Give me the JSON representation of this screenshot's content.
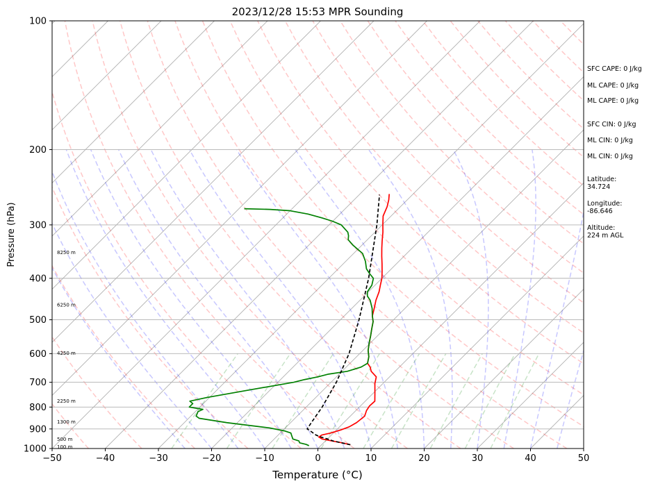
{
  "chart_data": {
    "type": "skew-t",
    "title": "2023/12/28 15:53 MPR Sounding",
    "xlabel": "Temperature (°C)",
    "ylabel": "Pressure (hPa)",
    "xlim": [
      -50,
      50
    ],
    "ylim": [
      1000,
      100
    ],
    "y_scale": "log",
    "x_ticks": [
      -50,
      -40,
      -30,
      -20,
      -10,
      0,
      10,
      20,
      30,
      40,
      50
    ],
    "y_ticks": [
      100,
      200,
      300,
      400,
      500,
      600,
      700,
      800,
      900,
      1000
    ],
    "grid": true,
    "skew_deg": 45,
    "series": [
      {
        "role": "temperature",
        "color": "#ff0000",
        "points": [
          [
            5.4,
            980
          ],
          [
            3.5,
            970
          ],
          [
            1.2,
            960
          ],
          [
            -1.0,
            950
          ],
          [
            -2.0,
            940
          ],
          [
            -1.8,
            930
          ],
          [
            -0.5,
            920
          ],
          [
            0.8,
            905
          ],
          [
            1.8,
            890
          ],
          [
            2.4,
            870
          ],
          [
            2.7,
            840
          ],
          [
            2.0,
            815
          ],
          [
            1.7,
            795
          ],
          [
            1.8,
            775
          ],
          [
            0.2,
            740
          ],
          [
            -1.5,
            705
          ],
          [
            -2.5,
            680
          ],
          [
            -4.5,
            660
          ],
          [
            -5.5,
            645
          ],
          [
            -6.7,
            632
          ],
          [
            -7.7,
            610
          ],
          [
            -9.0,
            590
          ],
          [
            -10.3,
            565
          ],
          [
            -11.3,
            545
          ],
          [
            -12.4,
            525
          ],
          [
            -13.5,
            505
          ],
          [
            -14.7,
            490
          ],
          [
            -15.8,
            470
          ],
          [
            -17.0,
            450
          ],
          [
            -18.0,
            430
          ],
          [
            -19.0,
            415
          ],
          [
            -20.0,
            400
          ],
          [
            -21.3,
            385
          ],
          [
            -22.7,
            370
          ],
          [
            -24.2,
            355
          ],
          [
            -25.7,
            340
          ],
          [
            -27.0,
            327
          ],
          [
            -28.5,
            312
          ],
          [
            -30.0,
            299
          ],
          [
            -31.5,
            286
          ],
          [
            -32.5,
            272
          ],
          [
            -33.5,
            262
          ],
          [
            -34.5,
            254
          ]
        ]
      },
      {
        "role": "dewpoint",
        "color": "#008000",
        "points": [
          [
            -2.2,
            985
          ],
          [
            -3.0,
            978
          ],
          [
            -4.5,
            970
          ],
          [
            -5.0,
            960
          ],
          [
            -6.5,
            950
          ],
          [
            -7.0,
            940
          ],
          [
            -7.5,
            930
          ],
          [
            -8.0,
            920
          ],
          [
            -9.5,
            910
          ],
          [
            -13.0,
            895
          ],
          [
            -22.0,
            870
          ],
          [
            -28.0,
            850
          ],
          [
            -29.0,
            840
          ],
          [
            -29.5,
            820
          ],
          [
            -29.0,
            810
          ],
          [
            -32.0,
            800
          ],
          [
            -32.0,
            785
          ],
          [
            -33.0,
            775
          ],
          [
            -30.5,
            760
          ],
          [
            -24.0,
            730
          ],
          [
            -17.0,
            700
          ],
          [
            -15.5,
            690
          ],
          [
            -13.5,
            680
          ],
          [
            -12.0,
            670
          ],
          [
            -9.0,
            660
          ],
          [
            -7.2,
            645
          ],
          [
            -6.7,
            632
          ],
          [
            -7.7,
            610
          ],
          [
            -9.0,
            590
          ],
          [
            -10.3,
            565
          ],
          [
            -11.3,
            545
          ],
          [
            -12.4,
            525
          ],
          [
            -13.5,
            505
          ],
          [
            -14.7,
            490
          ],
          [
            -16.2,
            470
          ],
          [
            -18.1,
            450
          ],
          [
            -19.4,
            440
          ],
          [
            -20.2,
            430
          ],
          [
            -20.6,
            415
          ],
          [
            -21.6,
            400
          ],
          [
            -23.2,
            390
          ],
          [
            -24.7,
            380
          ],
          [
            -26.3,
            365
          ],
          [
            -28.3,
            350
          ],
          [
            -31.6,
            335
          ],
          [
            -33.6,
            325
          ],
          [
            -34.3,
            318
          ],
          [
            -35.1,
            312
          ],
          [
            -37.7,
            300
          ],
          [
            -40.1,
            294
          ],
          [
            -42.6,
            289
          ],
          [
            -46.0,
            283
          ],
          [
            -50.0,
            278
          ],
          [
            -54.0,
            276
          ],
          [
            -59.0,
            275
          ]
        ]
      },
      {
        "role": "parcel",
        "color": "#000000",
        "style": "dashed",
        "points": [
          [
            5.4,
            980
          ],
          [
            1.4,
            960
          ],
          [
            0.0,
            950
          ],
          [
            -1.6,
            940
          ],
          [
            -2.9,
            930
          ],
          [
            -3.8,
            920
          ],
          [
            -4.7,
            910
          ],
          [
            -5.7,
            900
          ],
          [
            -6.1,
            870
          ],
          [
            -7.0,
            800
          ],
          [
            -9.0,
            700
          ],
          [
            -12.0,
            600
          ],
          [
            -16.5,
            500
          ],
          [
            -22.5,
            400
          ],
          [
            -31.0,
            300
          ],
          [
            -36.2,
            255
          ]
        ]
      }
    ],
    "reference_lines": {
      "dry_adiabats_theta_k": [
        230,
        240,
        250,
        260,
        270,
        280,
        290,
        300,
        310,
        320,
        330,
        340,
        350,
        360,
        370,
        380,
        390,
        400,
        410,
        420,
        430,
        440,
        450,
        460,
        470,
        480,
        490
      ],
      "moist_adiabats_start_c": [
        -25,
        -20,
        -15,
        -10,
        -5,
        0,
        5,
        10,
        15,
        20,
        25,
        30,
        35,
        40,
        45
      ],
      "mixing_ratio_gkg": [
        0.4,
        1,
        2,
        4,
        7,
        10,
        16,
        24,
        32
      ],
      "dry_adiabat_color": "#ff0000",
      "moist_adiabat_color": "#0000ff",
      "mixing_ratio_color": "#008000"
    },
    "height_labels": [
      {
        "text": "100 m",
        "p": 990
      },
      {
        "text": "500 m",
        "p": 950
      },
      {
        "text": "1300 m",
        "p": 866
      },
      {
        "text": "2250 m",
        "p": 774
      },
      {
        "text": "4250 m",
        "p": 598
      },
      {
        "text": "6250 m",
        "p": 461
      },
      {
        "text": "8250 m",
        "p": 348
      }
    ]
  },
  "side_panel": [
    "SFC CAPE: 0 J/kg",
    "ML CAPE: 0 J/kg",
    "ML CAPE: 0 J/kg",
    "SFC CIN: 0 J/kg",
    "ML CIN: 0 J/kg",
    "ML CIN: 0 J/kg",
    "Latitude:\n34.724",
    "Longitude:\n-86.646",
    "Altitude:\n224 m AGL"
  ]
}
